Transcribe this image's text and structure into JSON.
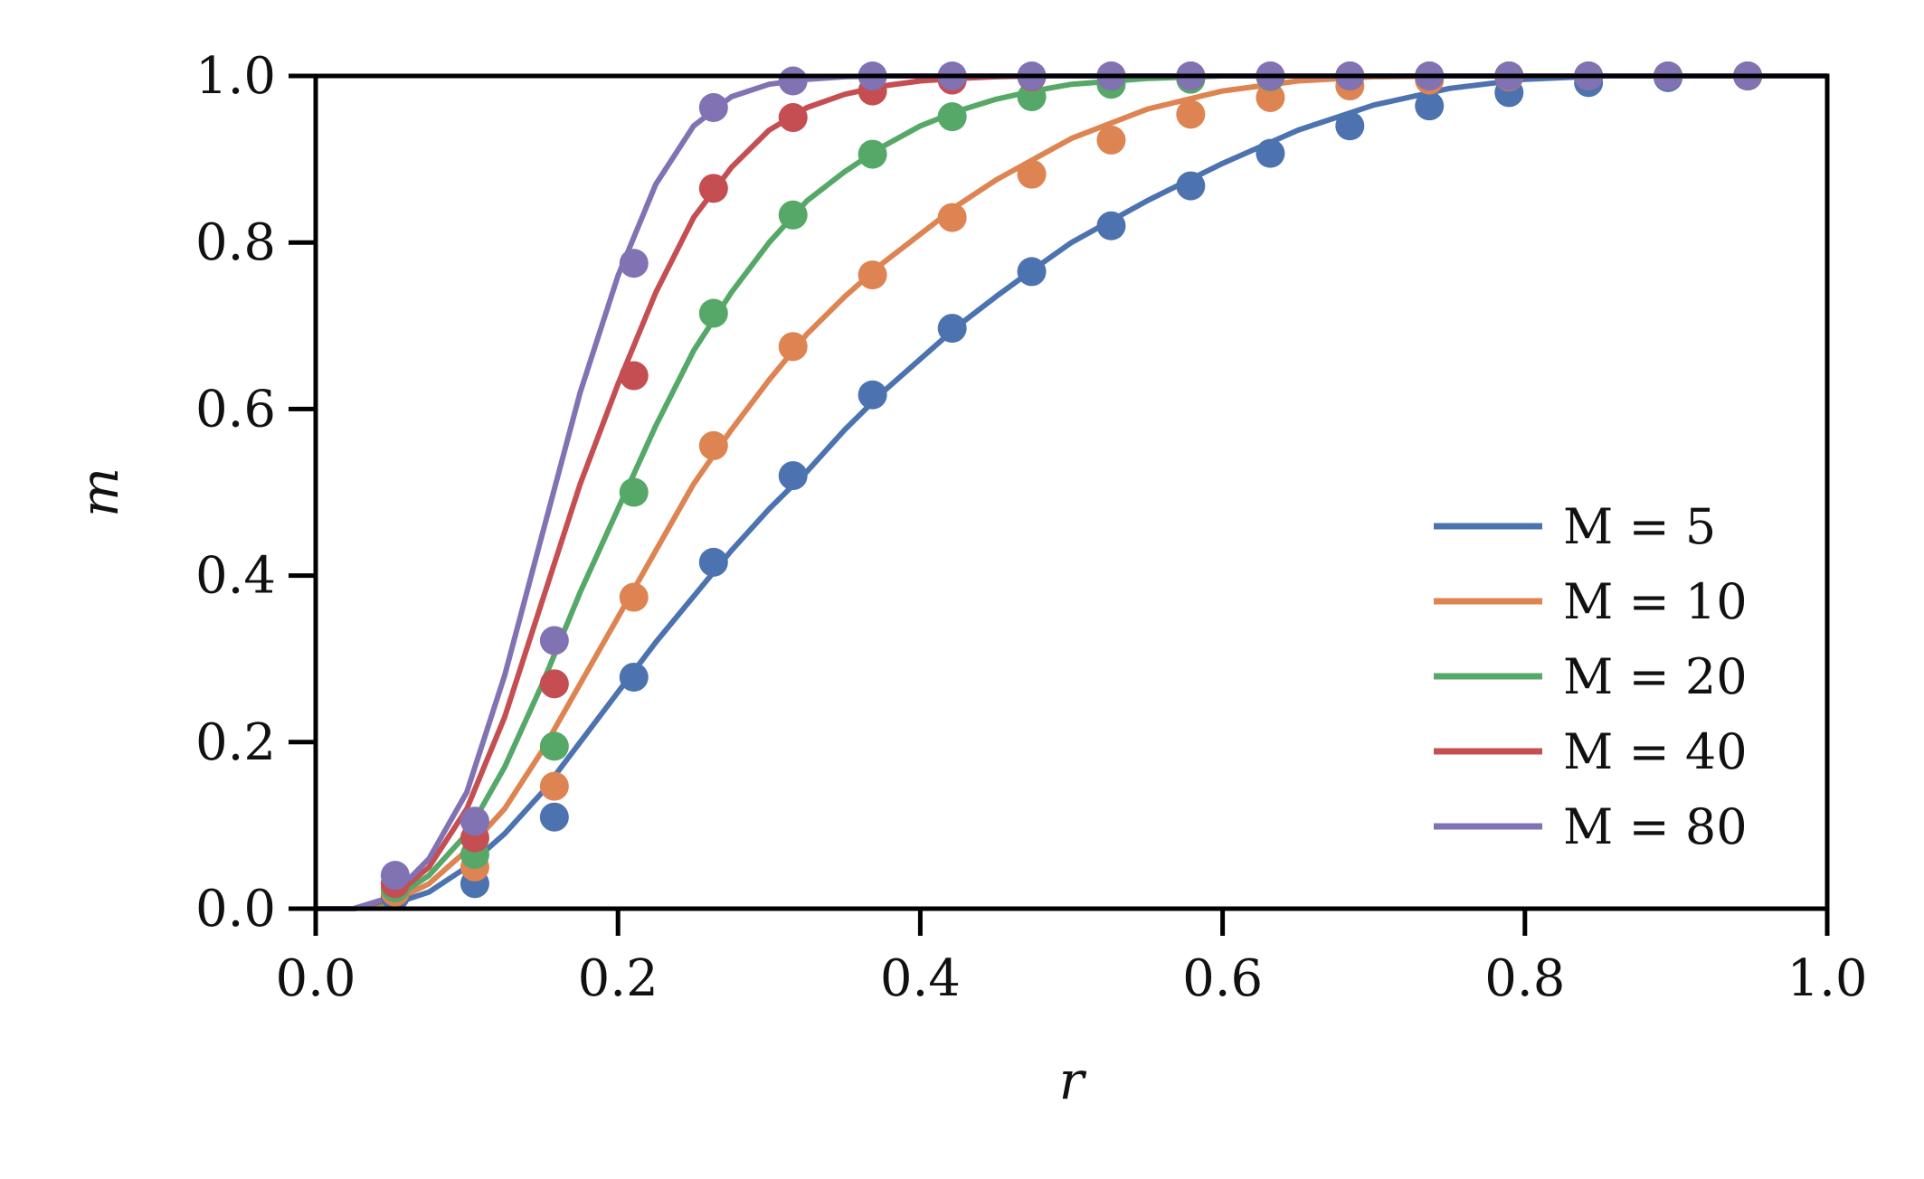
{
  "chart_data": {
    "type": "line",
    "title": "",
    "xlabel": "r",
    "ylabel": "m",
    "xlim": [
      0.0,
      1.0
    ],
    "ylim": [
      0.0,
      1.0
    ],
    "grid": false,
    "legend_position": "center-right",
    "x_ticks": [
      "0.0",
      "0.2",
      "0.4",
      "0.6",
      "0.8",
      "1.0"
    ],
    "y_ticks": [
      "0.0",
      "0.2",
      "0.4",
      "0.6",
      "0.8",
      "1.0"
    ],
    "points_x": [
      0.0526,
      0.1053,
      0.1579,
      0.2105,
      0.2632,
      0.3158,
      0.3684,
      0.4211,
      0.4737,
      0.5263,
      0.5789,
      0.6316,
      0.6842,
      0.7368,
      0.7895,
      0.8421,
      0.8947,
      0.9474
    ],
    "curve_x": [
      0.0,
      0.025,
      0.05,
      0.075,
      0.1,
      0.125,
      0.15,
      0.175,
      0.2,
      0.225,
      0.25,
      0.275,
      0.3,
      0.325,
      0.35,
      0.375,
      0.4,
      0.425,
      0.45,
      0.475,
      0.5,
      0.55,
      0.6,
      0.65,
      0.7,
      0.75,
      0.8,
      0.85,
      0.9,
      0.95,
      1.0
    ],
    "series": [
      {
        "name": "M = 5",
        "color": "#4c72b0",
        "points_y": [
          0.015,
          0.03,
          0.11,
          0.278,
          0.416,
          0.52,
          0.617,
          0.697,
          0.765,
          0.82,
          0.868,
          0.907,
          0.94,
          0.964,
          0.98,
          0.992,
          0.998,
          1.0
        ],
        "curve_y": [
          0.0,
          0.0,
          0.005,
          0.02,
          0.05,
          0.09,
          0.14,
          0.2,
          0.26,
          0.32,
          0.375,
          0.43,
          0.48,
          0.525,
          0.575,
          0.62,
          0.66,
          0.7,
          0.735,
          0.768,
          0.8,
          0.85,
          0.895,
          0.935,
          0.965,
          0.985,
          0.996,
          1.0,
          1.0,
          1.0,
          1.0
        ]
      },
      {
        "name": "M = 10",
        "color": "#dd8452",
        "points_y": [
          0.02,
          0.05,
          0.147,
          0.374,
          0.556,
          0.675,
          0.761,
          0.83,
          0.882,
          0.923,
          0.954,
          0.974,
          0.988,
          0.995,
          0.999,
          1.0,
          1.0,
          1.0
        ],
        "curve_y": [
          0.0,
          0.0,
          0.008,
          0.03,
          0.07,
          0.12,
          0.19,
          0.27,
          0.35,
          0.43,
          0.51,
          0.575,
          0.635,
          0.69,
          0.735,
          0.775,
          0.81,
          0.845,
          0.875,
          0.9,
          0.925,
          0.96,
          0.982,
          0.994,
          0.999,
          1.0,
          1.0,
          1.0,
          1.0,
          1.0,
          1.0
        ]
      },
      {
        "name": "M = 20",
        "color": "#55a868",
        "points_y": [
          0.025,
          0.065,
          0.195,
          0.5,
          0.715,
          0.833,
          0.906,
          0.951,
          0.975,
          0.99,
          0.996,
          0.999,
          1.0,
          1.0,
          1.0,
          1.0,
          1.0,
          1.0
        ],
        "curve_y": [
          0.0,
          0.0,
          0.01,
          0.04,
          0.09,
          0.17,
          0.27,
          0.38,
          0.48,
          0.58,
          0.67,
          0.74,
          0.8,
          0.85,
          0.885,
          0.915,
          0.94,
          0.958,
          0.972,
          0.982,
          0.99,
          0.997,
          1.0,
          1.0,
          1.0,
          1.0,
          1.0,
          1.0,
          1.0,
          1.0,
          1.0
        ]
      },
      {
        "name": "M = 40",
        "color": "#c44e52",
        "points_y": [
          0.03,
          0.085,
          0.27,
          0.64,
          0.865,
          0.95,
          0.982,
          0.995,
          0.999,
          1.0,
          1.0,
          1.0,
          1.0,
          1.0,
          1.0,
          1.0,
          1.0,
          1.0
        ],
        "curve_y": [
          0.0,
          0.0,
          0.012,
          0.05,
          0.12,
          0.23,
          0.37,
          0.51,
          0.63,
          0.74,
          0.83,
          0.89,
          0.935,
          0.962,
          0.978,
          0.988,
          0.994,
          0.997,
          0.999,
          1.0,
          1.0,
          1.0,
          1.0,
          1.0,
          1.0,
          1.0,
          1.0,
          1.0,
          1.0,
          1.0,
          1.0
        ]
      },
      {
        "name": "M = 80",
        "color": "#8172b3",
        "points_y": [
          0.04,
          0.105,
          0.322,
          0.775,
          0.962,
          0.994,
          1.0,
          1.0,
          1.0,
          1.0,
          1.0,
          1.0,
          1.0,
          1.0,
          1.0,
          1.0,
          1.0,
          1.0
        ],
        "curve_y": [
          0.0,
          0.0,
          0.014,
          0.06,
          0.14,
          0.28,
          0.45,
          0.62,
          0.76,
          0.87,
          0.94,
          0.975,
          0.99,
          0.996,
          0.999,
          1.0,
          1.0,
          1.0,
          1.0,
          1.0,
          1.0,
          1.0,
          1.0,
          1.0,
          1.0,
          1.0,
          1.0,
          1.0,
          1.0,
          1.0,
          1.0
        ]
      }
    ]
  }
}
